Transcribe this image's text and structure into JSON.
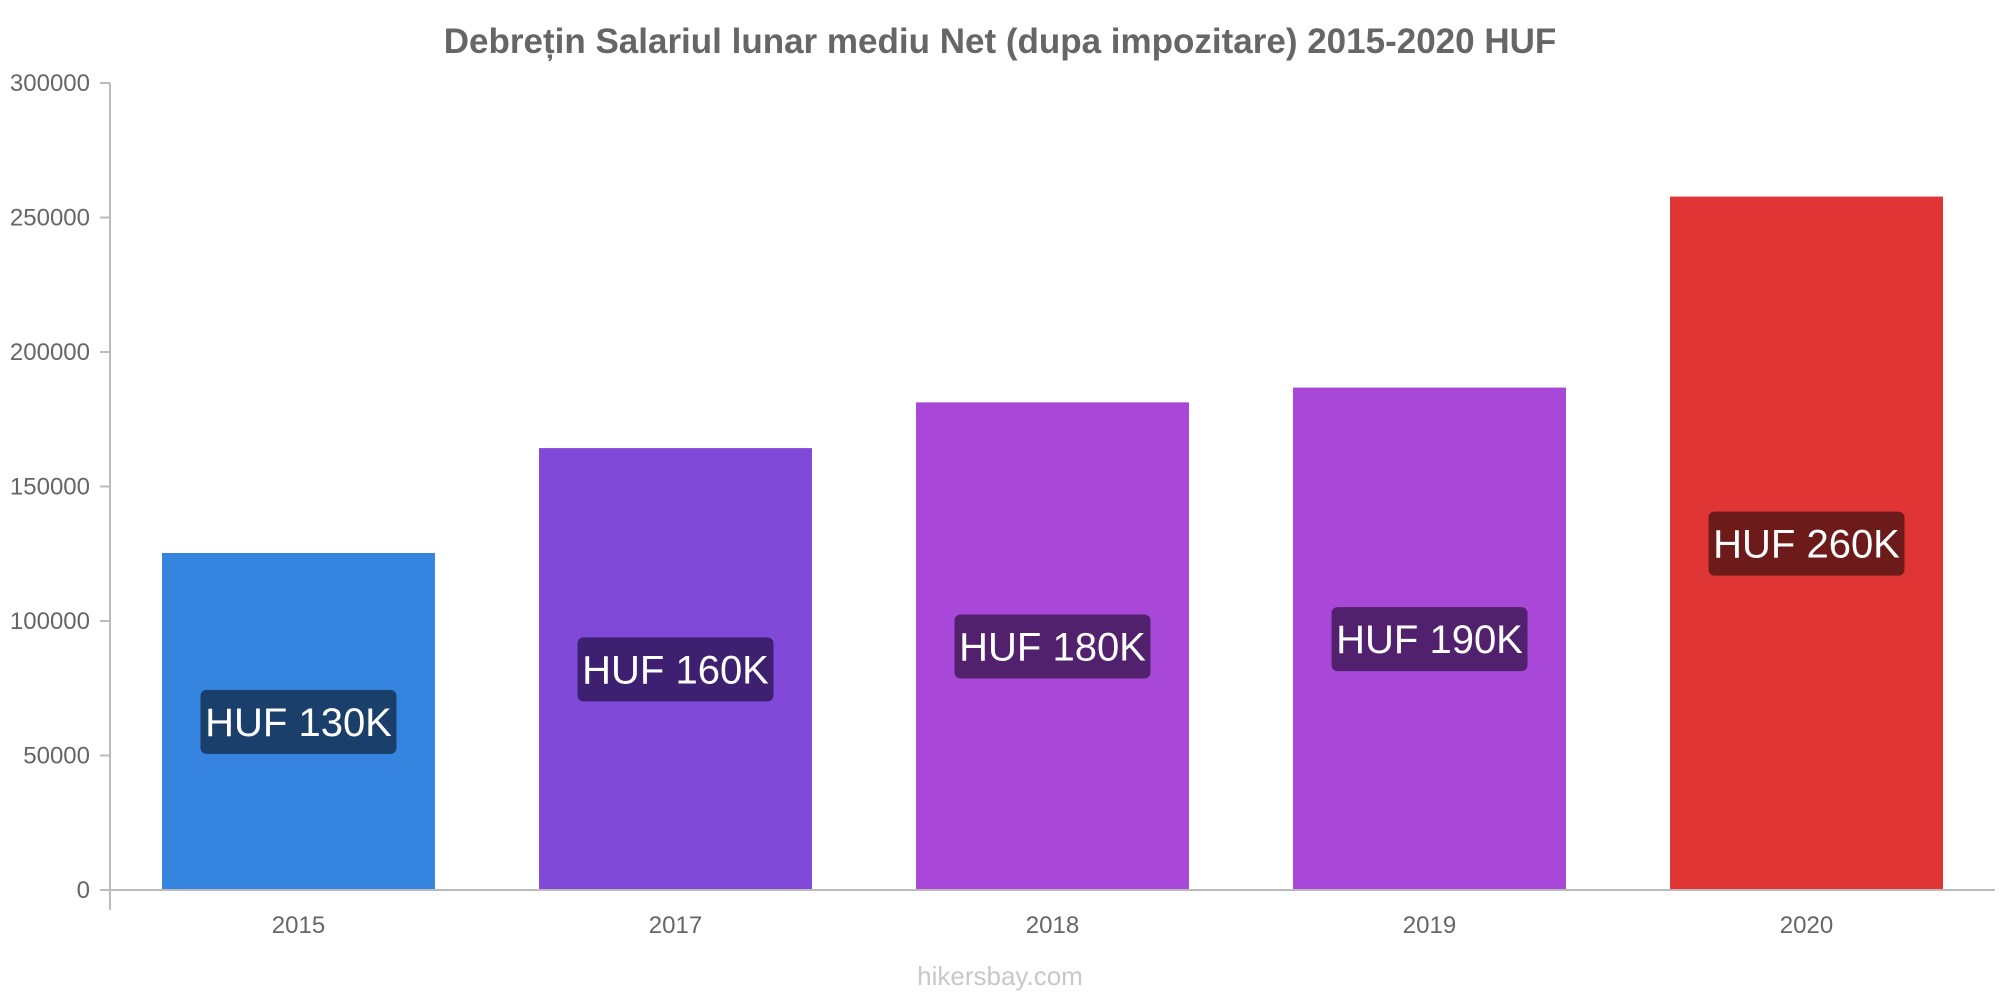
{
  "chart_data": {
    "type": "bar",
    "title": "Debrețin Salariul lunar mediu Net (dupa impozitare) 2015-2020 HUF",
    "xlabel": "",
    "ylabel": "",
    "categories": [
      "2015",
      "2017",
      "2018",
      "2019",
      "2020"
    ],
    "values": [
      125000,
      164000,
      181000,
      186500,
      257500
    ],
    "data_labels": [
      "HUF 130K",
      "HUF 160K",
      "HUF 180K",
      "HUF 190K",
      "HUF 260K"
    ],
    "ylim": [
      0,
      300000
    ],
    "yticks": [
      "0",
      "50000",
      "100000",
      "150000",
      "200000",
      "250000",
      "300000"
    ],
    "grid": false,
    "legend": "none",
    "colors": {
      "bars": [
        "#3584e0",
        "#8049d8",
        "#a847d8",
        "#a847d8",
        "#e03535"
      ],
      "label_boxes": [
        "#1a3f6b",
        "#3d2170",
        "#51216d",
        "#51216d",
        "#6d1a1a"
      ],
      "axis": "#bbbbbb",
      "text": "#666666"
    }
  },
  "watermark": "hikersbay.com"
}
